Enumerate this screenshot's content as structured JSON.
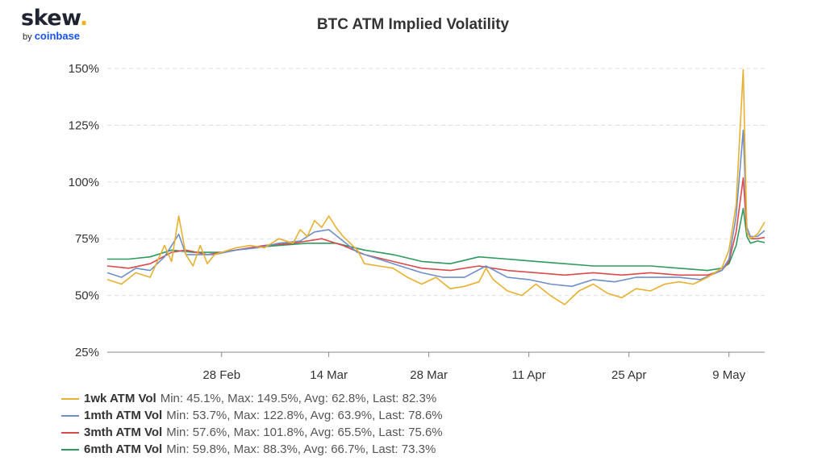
{
  "logo": {
    "main": "skew",
    "dot": ".",
    "sub_by": "by",
    "sub_brand": "coinbase"
  },
  "chart_data": {
    "type": "line",
    "title": "BTC ATM Implied Volatility",
    "xlabel": "",
    "ylabel": "",
    "x_range": [
      "2020-02-12",
      "2020-05-14"
    ],
    "x_ticks": [
      {
        "date": "2020-02-28",
        "label": "28 Feb"
      },
      {
        "date": "2020-03-14",
        "label": "14 Mar"
      },
      {
        "date": "2020-03-28",
        "label": "28 Mar"
      },
      {
        "date": "2020-04-11",
        "label": "11 Apr"
      },
      {
        "date": "2020-04-25",
        "label": "25 Apr"
      },
      {
        "date": "2020-05-09",
        "label": "9 May"
      }
    ],
    "ylim": [
      25,
      150
    ],
    "y_ticks": [
      25,
      50,
      75,
      100,
      125,
      150
    ],
    "y_tick_suffix": "%",
    "grid": "horizontal-dashed",
    "legend_position": "bottom-left",
    "series": [
      {
        "name": "1wk ATM Vol",
        "color": "#e8b030",
        "stats": "Min: 45.1%, Max: 149.5%, Avg: 62.8%, Last: 82.3%",
        "points": [
          [
            "2020-02-12",
            57
          ],
          [
            "2020-02-14",
            55
          ],
          [
            "2020-02-16",
            60
          ],
          [
            "2020-02-18",
            58
          ],
          [
            "2020-02-20",
            72
          ],
          [
            "2020-02-21",
            65
          ],
          [
            "2020-02-22",
            85
          ],
          [
            "2020-02-23",
            68
          ],
          [
            "2020-02-24",
            63
          ],
          [
            "2020-02-25",
            72
          ],
          [
            "2020-02-26",
            64
          ],
          [
            "2020-02-27",
            68
          ],
          [
            "2020-02-28",
            69
          ],
          [
            "2020-03-01",
            71
          ],
          [
            "2020-03-03",
            72
          ],
          [
            "2020-03-05",
            71
          ],
          [
            "2020-03-07",
            75
          ],
          [
            "2020-03-09",
            73
          ],
          [
            "2020-03-10",
            79
          ],
          [
            "2020-03-11",
            76
          ],
          [
            "2020-03-12",
            83
          ],
          [
            "2020-03-13",
            80
          ],
          [
            "2020-03-14",
            85
          ],
          [
            "2020-03-15",
            80
          ],
          [
            "2020-03-16",
            76
          ],
          [
            "2020-03-18",
            70
          ],
          [
            "2020-03-19",
            64
          ],
          [
            "2020-03-21",
            63
          ],
          [
            "2020-03-23",
            62
          ],
          [
            "2020-03-25",
            58
          ],
          [
            "2020-03-27",
            55
          ],
          [
            "2020-03-29",
            58
          ],
          [
            "2020-03-31",
            53
          ],
          [
            "2020-04-02",
            54
          ],
          [
            "2020-04-04",
            56
          ],
          [
            "2020-04-05",
            62
          ],
          [
            "2020-04-06",
            57
          ],
          [
            "2020-04-08",
            52
          ],
          [
            "2020-04-10",
            50
          ],
          [
            "2020-04-12",
            55
          ],
          [
            "2020-04-14",
            50
          ],
          [
            "2020-04-16",
            46
          ],
          [
            "2020-04-18",
            52
          ],
          [
            "2020-04-20",
            55
          ],
          [
            "2020-04-22",
            51
          ],
          [
            "2020-04-24",
            49
          ],
          [
            "2020-04-26",
            53
          ],
          [
            "2020-04-28",
            52
          ],
          [
            "2020-04-30",
            55
          ],
          [
            "2020-05-02",
            56
          ],
          [
            "2020-05-04",
            55
          ],
          [
            "2020-05-06",
            58
          ],
          [
            "2020-05-08",
            62
          ],
          [
            "2020-05-09",
            70
          ],
          [
            "2020-05-10",
            90
          ],
          [
            "2020-05-11",
            149.5
          ],
          [
            "2020-05-11T12:00",
            78
          ],
          [
            "2020-05-12",
            75
          ],
          [
            "2020-05-13",
            77
          ],
          [
            "2020-05-14",
            82.3
          ]
        ]
      },
      {
        "name": "1mth ATM Vol",
        "color": "#6f8fca",
        "stats": "Min: 53.7%, Max: 122.8%, Avg: 63.9%, Last: 78.6%",
        "points": [
          [
            "2020-02-12",
            60
          ],
          [
            "2020-02-14",
            58
          ],
          [
            "2020-02-16",
            62
          ],
          [
            "2020-02-18",
            61
          ],
          [
            "2020-02-20",
            67
          ],
          [
            "2020-02-22",
            77
          ],
          [
            "2020-02-23",
            68
          ],
          [
            "2020-02-25",
            68
          ],
          [
            "2020-02-27",
            68
          ],
          [
            "2020-03-01",
            70
          ],
          [
            "2020-03-04",
            71
          ],
          [
            "2020-03-07",
            73
          ],
          [
            "2020-03-10",
            74
          ],
          [
            "2020-03-12",
            78
          ],
          [
            "2020-03-14",
            79
          ],
          [
            "2020-03-16",
            74
          ],
          [
            "2020-03-18",
            69
          ],
          [
            "2020-03-21",
            66
          ],
          [
            "2020-03-24",
            63
          ],
          [
            "2020-03-27",
            60
          ],
          [
            "2020-03-30",
            58
          ],
          [
            "2020-04-02",
            58
          ],
          [
            "2020-04-05",
            63
          ],
          [
            "2020-04-08",
            58
          ],
          [
            "2020-04-11",
            57
          ],
          [
            "2020-04-14",
            55
          ],
          [
            "2020-04-17",
            54
          ],
          [
            "2020-04-20",
            57
          ],
          [
            "2020-04-23",
            56
          ],
          [
            "2020-04-26",
            58
          ],
          [
            "2020-04-29",
            58
          ],
          [
            "2020-05-02",
            58
          ],
          [
            "2020-05-05",
            57
          ],
          [
            "2020-05-08",
            61
          ],
          [
            "2020-05-09",
            66
          ],
          [
            "2020-05-10",
            85
          ],
          [
            "2020-05-11",
            122.8
          ],
          [
            "2020-05-11T12:00",
            80
          ],
          [
            "2020-05-12",
            76
          ],
          [
            "2020-05-13",
            76
          ],
          [
            "2020-05-14",
            78.6
          ]
        ]
      },
      {
        "name": "3mth ATM Vol",
        "color": "#d94a4a",
        "stats": "Min: 57.6%, Max: 101.8%, Avg: 65.5%, Last: 75.6%",
        "points": [
          [
            "2020-02-12",
            63
          ],
          [
            "2020-02-15",
            62
          ],
          [
            "2020-02-18",
            64
          ],
          [
            "2020-02-21",
            69
          ],
          [
            "2020-02-23",
            70
          ],
          [
            "2020-02-26",
            68
          ],
          [
            "2020-03-01",
            70
          ],
          [
            "2020-03-05",
            72
          ],
          [
            "2020-03-09",
            73
          ],
          [
            "2020-03-13",
            75
          ],
          [
            "2020-03-16",
            72
          ],
          [
            "2020-03-19",
            68
          ],
          [
            "2020-03-23",
            65
          ],
          [
            "2020-03-27",
            62
          ],
          [
            "2020-03-31",
            61
          ],
          [
            "2020-04-04",
            63
          ],
          [
            "2020-04-08",
            61
          ],
          [
            "2020-04-12",
            60
          ],
          [
            "2020-04-16",
            59
          ],
          [
            "2020-04-20",
            60
          ],
          [
            "2020-04-24",
            59
          ],
          [
            "2020-04-28",
            60
          ],
          [
            "2020-05-02",
            59
          ],
          [
            "2020-05-06",
            59
          ],
          [
            "2020-05-08",
            61
          ],
          [
            "2020-05-09",
            65
          ],
          [
            "2020-05-10",
            78
          ],
          [
            "2020-05-11",
            101.8
          ],
          [
            "2020-05-11T12:00",
            78
          ],
          [
            "2020-05-12",
            75
          ],
          [
            "2020-05-13",
            75
          ],
          [
            "2020-05-14",
            75.6
          ]
        ]
      },
      {
        "name": "6mth ATM Vol",
        "color": "#2e9a5e",
        "stats": "Min: 59.8%, Max: 88.3%, Avg: 66.7%, Last: 73.3%",
        "points": [
          [
            "2020-02-12",
            66
          ],
          [
            "2020-02-15",
            66
          ],
          [
            "2020-02-18",
            67
          ],
          [
            "2020-02-21",
            70
          ],
          [
            "2020-02-24",
            69
          ],
          [
            "2020-02-28",
            69
          ],
          [
            "2020-03-03",
            71
          ],
          [
            "2020-03-07",
            72
          ],
          [
            "2020-03-11",
            73
          ],
          [
            "2020-03-15",
            73
          ],
          [
            "2020-03-19",
            70
          ],
          [
            "2020-03-23",
            68
          ],
          [
            "2020-03-27",
            65
          ],
          [
            "2020-03-31",
            64
          ],
          [
            "2020-04-04",
            67
          ],
          [
            "2020-04-08",
            66
          ],
          [
            "2020-04-12",
            65
          ],
          [
            "2020-04-16",
            64
          ],
          [
            "2020-04-20",
            63
          ],
          [
            "2020-04-24",
            63
          ],
          [
            "2020-04-28",
            63
          ],
          [
            "2020-05-02",
            62
          ],
          [
            "2020-05-06",
            61
          ],
          [
            "2020-05-08",
            62
          ],
          [
            "2020-05-09",
            64
          ],
          [
            "2020-05-10",
            72
          ],
          [
            "2020-05-11",
            88.3
          ],
          [
            "2020-05-11T12:00",
            76
          ],
          [
            "2020-05-12",
            73
          ],
          [
            "2020-05-13",
            74
          ],
          [
            "2020-05-14",
            73.3
          ]
        ]
      }
    ]
  }
}
